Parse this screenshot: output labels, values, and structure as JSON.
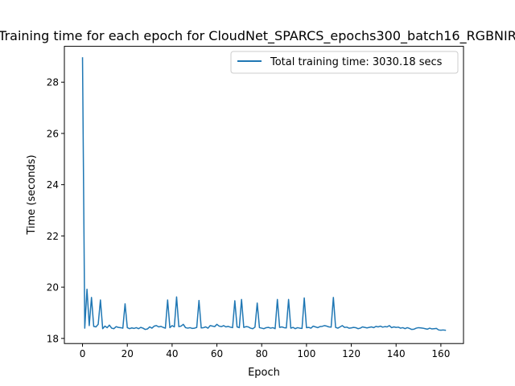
{
  "chart_data": {
    "type": "line",
    "title": "Training time for each epoch for CloudNet_SPARCS_epochs300_batch16_RGBNIR",
    "xlabel": "Epoch",
    "ylabel": "Time (seconds)",
    "xlim": [
      -8.1,
      170.1
    ],
    "ylim": [
      17.8,
      29.4
    ],
    "xticks": [
      0,
      20,
      40,
      60,
      80,
      100,
      120,
      140,
      160
    ],
    "yticks": [
      18,
      20,
      22,
      24,
      26,
      28
    ],
    "grid": false,
    "legend_position": "top-right",
    "series": [
      {
        "name": "Total training time: 3030.18 secs",
        "color": "#1f77b4",
        "x": [
          0,
          1,
          2,
          3,
          4,
          5,
          6,
          7,
          8,
          9,
          10,
          11,
          12,
          13,
          14,
          15,
          16,
          17,
          18,
          19,
          20,
          21,
          22,
          23,
          24,
          25,
          26,
          27,
          28,
          29,
          30,
          31,
          32,
          33,
          34,
          35,
          36,
          37,
          38,
          39,
          40,
          41,
          42,
          43,
          44,
          45,
          46,
          47,
          48,
          49,
          50,
          51,
          52,
          53,
          54,
          55,
          56,
          57,
          58,
          59,
          60,
          61,
          62,
          63,
          64,
          65,
          66,
          67,
          68,
          69,
          70,
          71,
          72,
          73,
          74,
          75,
          76,
          77,
          78,
          79,
          80,
          81,
          82,
          83,
          84,
          85,
          86,
          87,
          88,
          89,
          90,
          91,
          92,
          93,
          94,
          95,
          96,
          97,
          98,
          99,
          100,
          101,
          102,
          103,
          104,
          105,
          106,
          107,
          108,
          109,
          110,
          111,
          112,
          113,
          114,
          115,
          116,
          117,
          118,
          119,
          120,
          121,
          122,
          123,
          124,
          125,
          126,
          127,
          128,
          129,
          130,
          131,
          132,
          133,
          134,
          135,
          136,
          137,
          138,
          139,
          140,
          141,
          142,
          143,
          144,
          145,
          146,
          147,
          148,
          149,
          150,
          151,
          152,
          153,
          154,
          155,
          156,
          157,
          158,
          159,
          160,
          161,
          162
        ],
        "y": [
          28.95,
          18.4,
          19.92,
          18.5,
          19.6,
          18.47,
          18.45,
          18.55,
          19.5,
          18.38,
          18.48,
          18.42,
          18.52,
          18.4,
          18.38,
          18.46,
          18.43,
          18.42,
          18.4,
          19.35,
          18.42,
          18.38,
          18.41,
          18.39,
          18.42,
          18.38,
          18.43,
          18.4,
          18.35,
          18.37,
          18.45,
          18.4,
          18.48,
          18.5,
          18.45,
          18.47,
          18.43,
          18.4,
          19.5,
          18.42,
          18.5,
          18.45,
          19.62,
          18.46,
          18.48,
          18.55,
          18.42,
          18.4,
          18.42,
          18.39,
          18.4,
          18.43,
          19.48,
          18.41,
          18.42,
          18.45,
          18.4,
          18.5,
          18.48,
          18.46,
          18.55,
          18.48,
          18.46,
          18.5,
          18.45,
          18.47,
          18.44,
          18.42,
          19.47,
          18.45,
          18.42,
          19.52,
          18.43,
          18.46,
          18.45,
          18.4,
          18.38,
          18.44,
          19.38,
          18.42,
          18.4,
          18.38,
          18.42,
          18.43,
          18.4,
          18.42,
          18.38,
          19.52,
          18.43,
          18.45,
          18.42,
          18.41,
          19.52,
          18.4,
          18.43,
          18.38,
          18.42,
          18.4,
          18.39,
          19.58,
          18.42,
          18.43,
          18.4,
          18.48,
          18.45,
          18.42,
          18.46,
          18.47,
          18.5,
          18.48,
          18.45,
          18.44,
          19.6,
          18.43,
          18.4,
          18.45,
          18.5,
          18.43,
          18.44,
          18.4,
          18.41,
          18.43,
          18.42,
          18.38,
          18.4,
          18.45,
          18.43,
          18.41,
          18.43,
          18.45,
          18.42,
          18.47,
          18.45,
          18.48,
          18.44,
          18.46,
          18.45,
          18.5,
          18.42,
          18.45,
          18.43,
          18.44,
          18.4,
          18.42,
          18.38,
          18.42,
          18.39,
          18.35,
          18.36,
          18.4,
          18.42,
          18.41,
          18.4,
          18.38,
          18.36,
          18.4,
          18.37,
          18.38,
          18.39,
          18.33,
          18.32,
          18.33,
          18.32
        ]
      }
    ]
  }
}
